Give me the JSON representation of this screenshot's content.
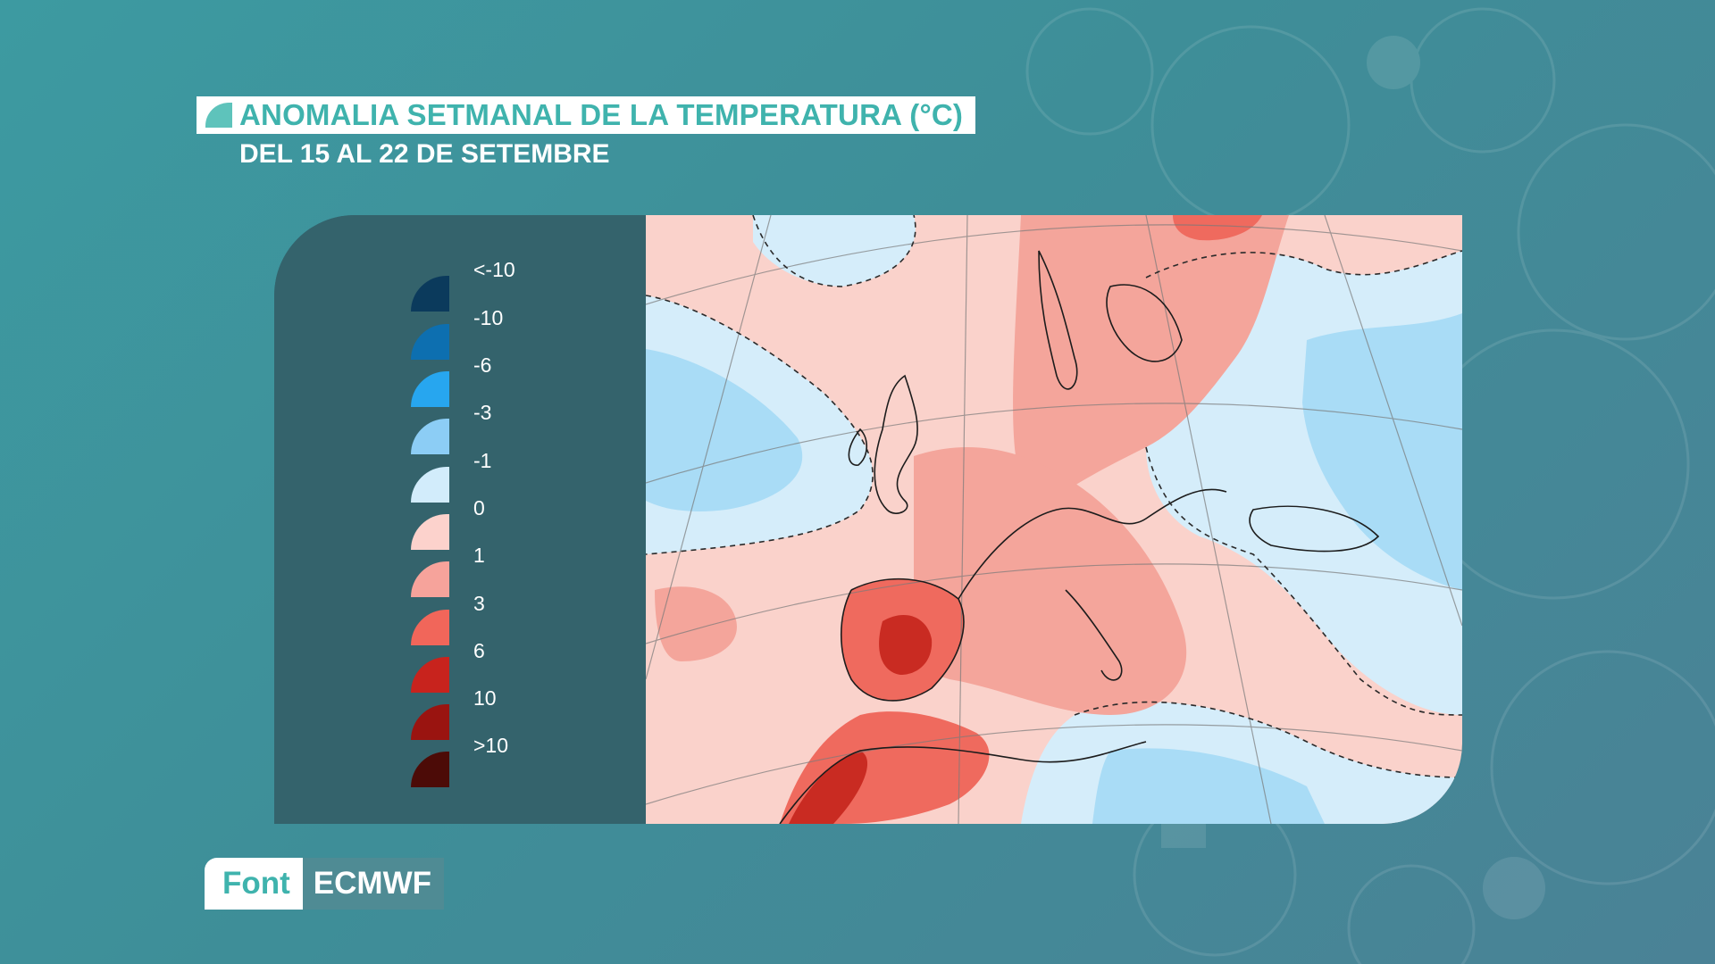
{
  "header": {
    "title": "ANOMALIA SETMANAL DE LA TEMPERATURA (°C)",
    "subtitle": "DEL 15 AL 22 DE SETEMBRE"
  },
  "legend": {
    "items": [
      {
        "label": "<-10",
        "color": "#0b3a5c"
      },
      {
        "label": "-10",
        "color": "#0d6fb0"
      },
      {
        "label": "-6",
        "color": "#27a6ef"
      },
      {
        "label": "-3",
        "color": "#8ccdf5"
      },
      {
        "label": "-1",
        "color": "#d2ecfb"
      },
      {
        "label": "0",
        "color": "#fcd2cc"
      },
      {
        "label": "1",
        "color": "#f6a39b"
      },
      {
        "label": "3",
        "color": "#f1665a"
      },
      {
        "label": "6",
        "color": "#c8231d"
      },
      {
        "label": "10",
        "color": "#9a1410"
      },
      {
        "label": ">10",
        "color": "#4c0b07"
      }
    ]
  },
  "source": {
    "label": "Font",
    "value": "ECMWF"
  },
  "colors": {
    "title_accent": "#3fb3ad",
    "panel": "#34636c"
  }
}
